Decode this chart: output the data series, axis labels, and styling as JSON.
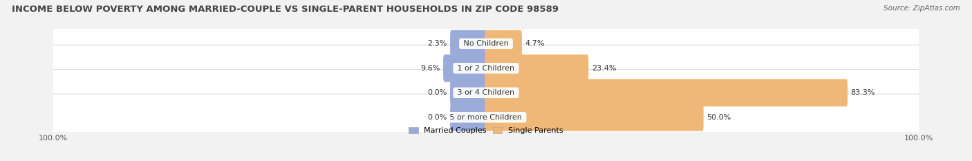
{
  "title": "INCOME BELOW POVERTY AMONG MARRIED-COUPLE VS SINGLE-PARENT HOUSEHOLDS IN ZIP CODE 98589",
  "source": "Source: ZipAtlas.com",
  "categories": [
    "No Children",
    "1 or 2 Children",
    "3 or 4 Children",
    "5 or more Children"
  ],
  "married_values": [
    2.3,
    9.6,
    0.0,
    0.0
  ],
  "single_values": [
    4.7,
    23.4,
    83.3,
    50.0
  ],
  "married_color": "#9aabda",
  "single_color": "#f0b878",
  "married_label": "Married Couples",
  "single_label": "Single Parents",
  "bg_color": "#f2f2f2",
  "row_bg_color": "#ffffff",
  "row_border_color": "#cccccc",
  "title_fontsize": 9.5,
  "label_fontsize": 8,
  "tick_fontsize": 8,
  "source_fontsize": 7.5,
  "xlim": 100,
  "bar_height": 0.52
}
